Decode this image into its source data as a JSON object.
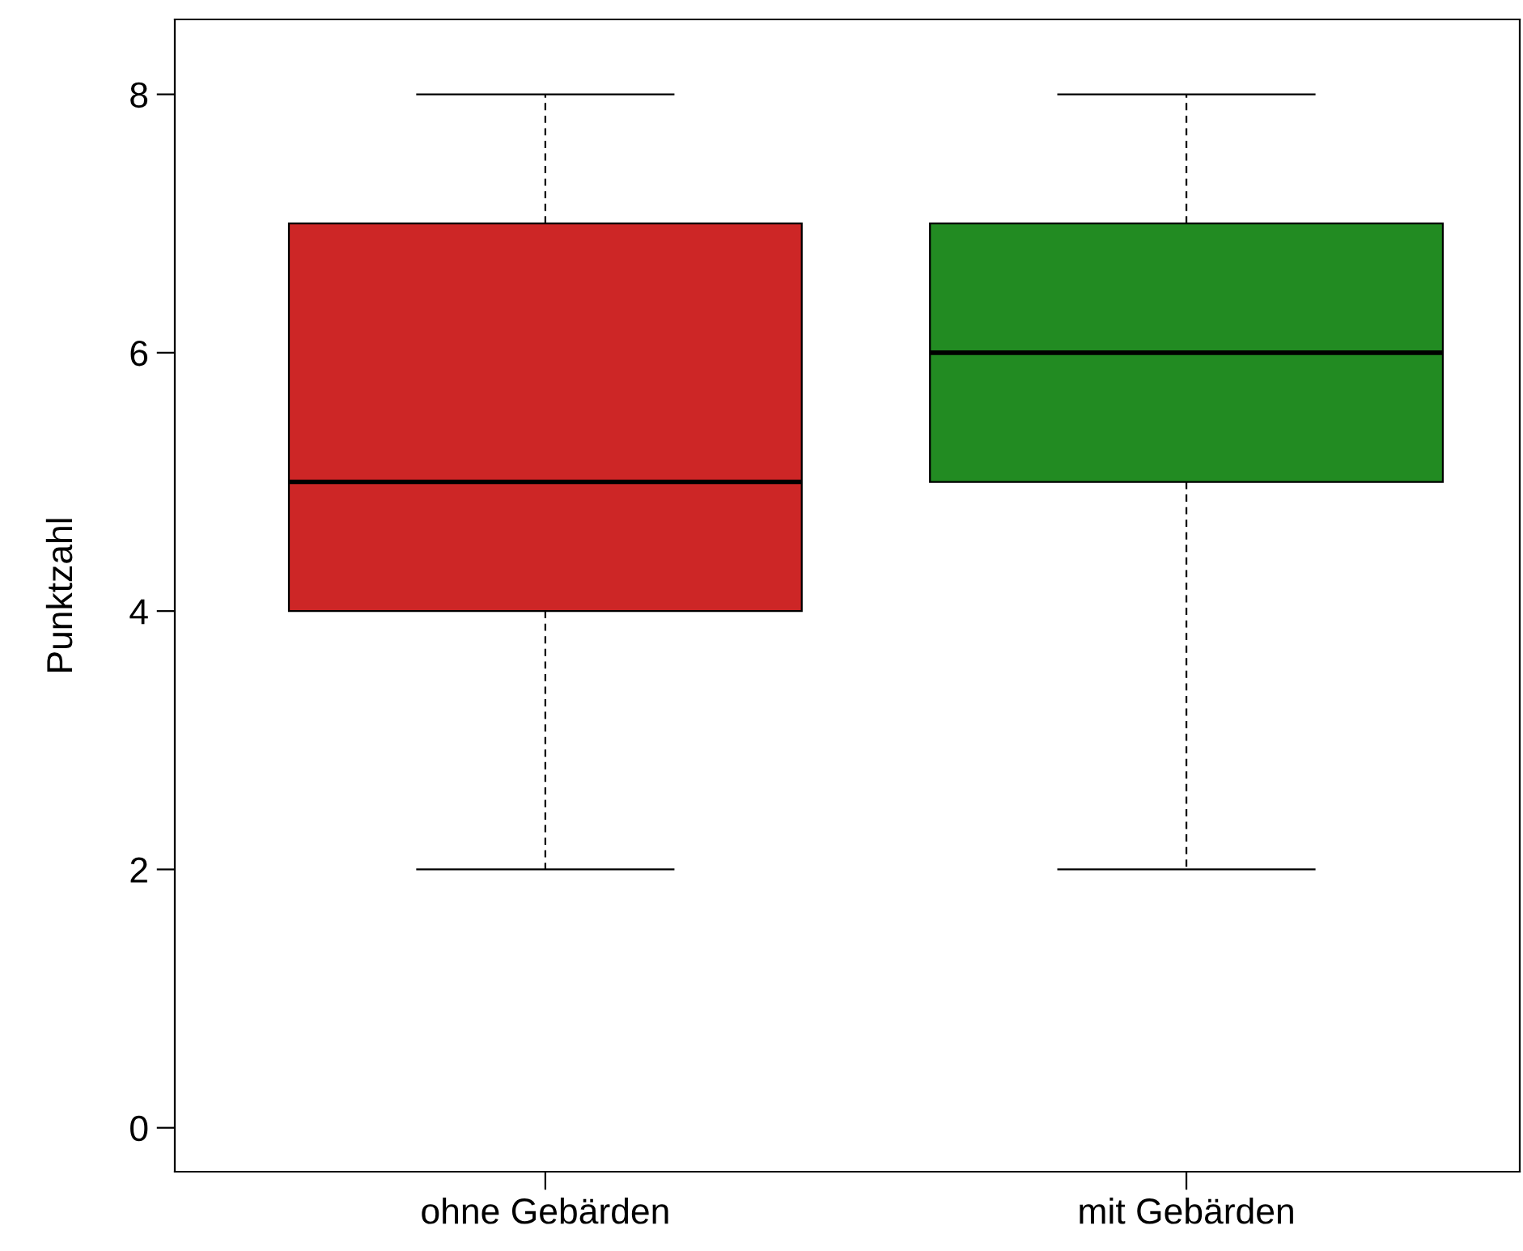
{
  "chart_data": {
    "type": "box",
    "ylabel": "Punktzahl",
    "categories": [
      "ohne Gebärden",
      "mit Gebärden"
    ],
    "boxes": [
      {
        "low": 2,
        "q1": 4,
        "median": 5,
        "q3": 7,
        "high": 8
      },
      {
        "low": 2,
        "q1": 5,
        "median": 6,
        "q3": 7,
        "high": 8
      }
    ],
    "colors": [
      "#cd2626",
      "#228b22"
    ],
    "ylim": [
      -0.34,
      8.58
    ],
    "yticks": [
      0,
      2,
      4,
      6,
      8
    ],
    "grid": false,
    "legend": false
  }
}
